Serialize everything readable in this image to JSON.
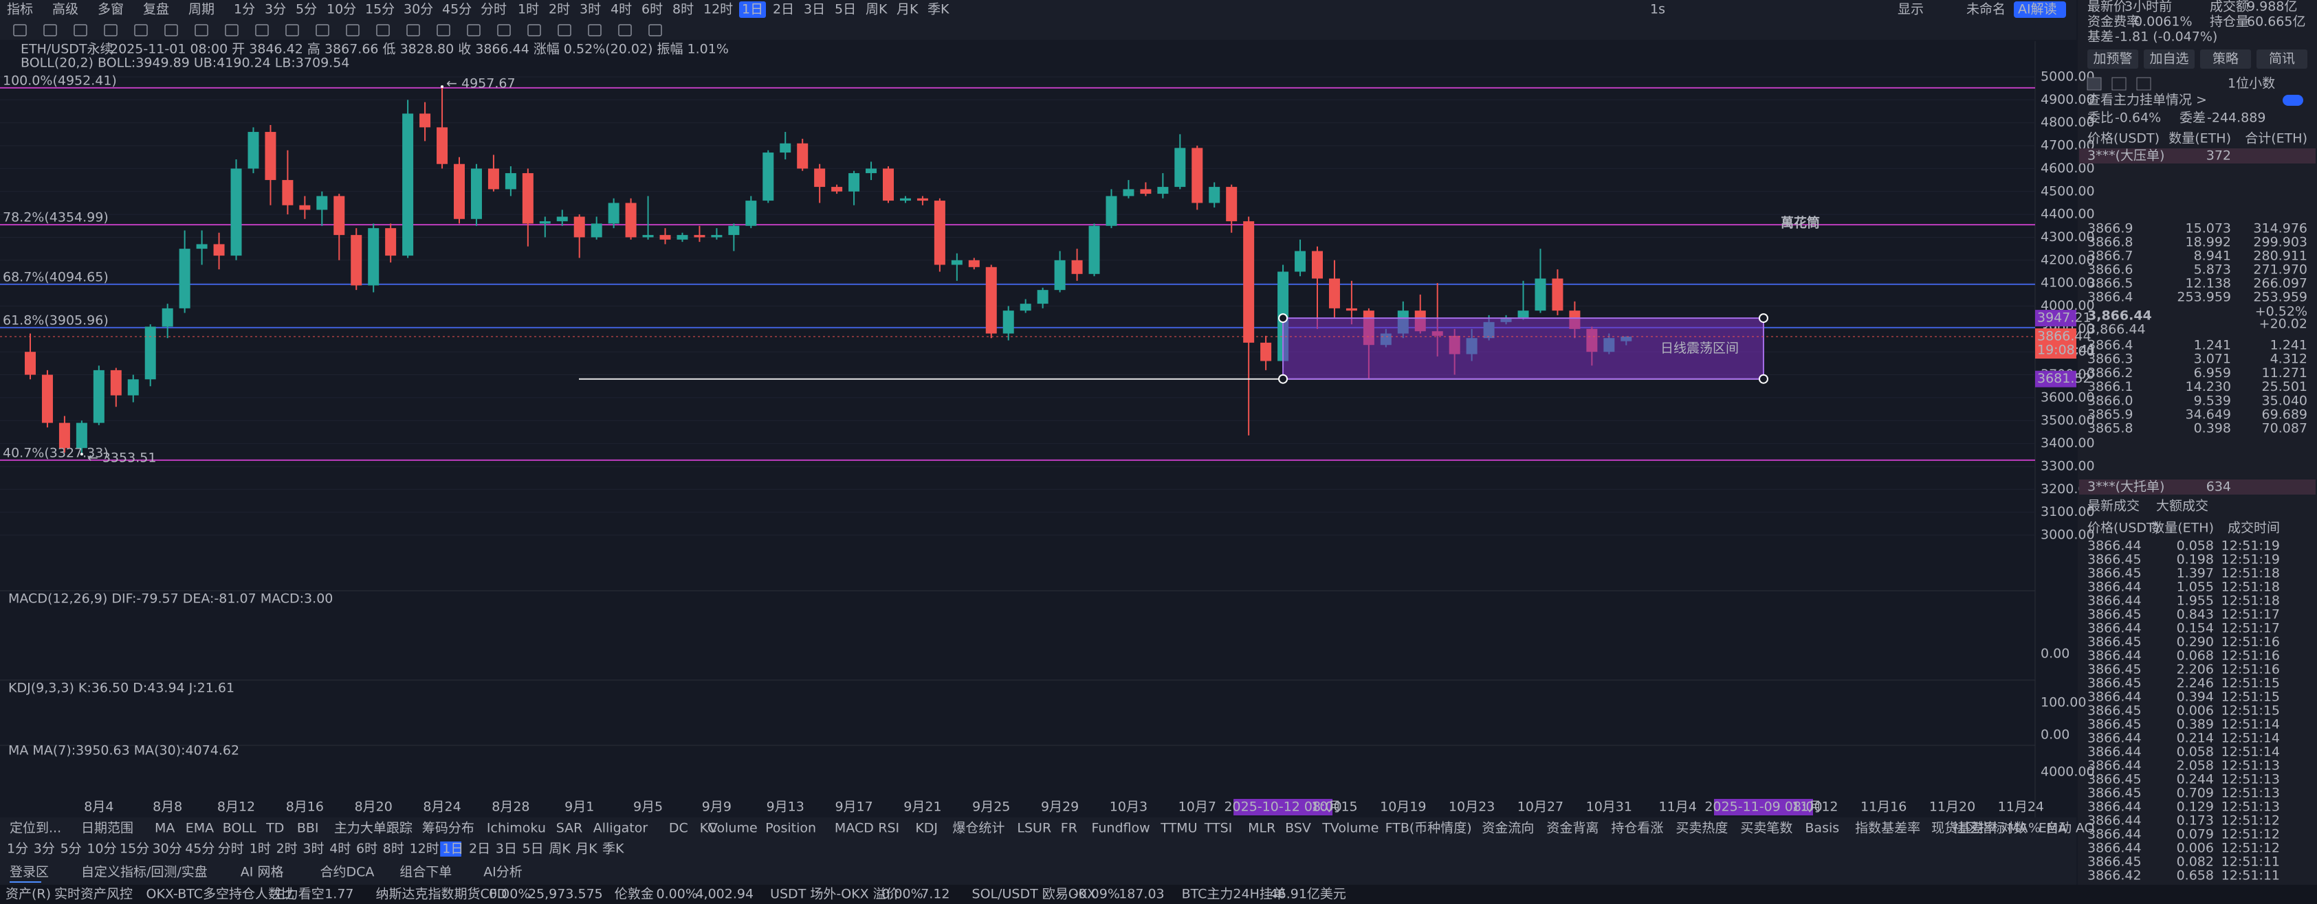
{
  "toolbar": {
    "items": [
      "指标",
      "高级",
      "多窗",
      "复盘",
      "周期",
      "1分",
      "3分",
      "5分",
      "10分",
      "15分",
      "30分",
      "45分",
      "分时",
      "1时",
      "2时",
      "3时",
      "4时",
      "6时",
      "8时",
      "12时",
      "1日",
      "2日",
      "3日",
      "5日",
      "周K",
      "月K",
      "季K"
    ],
    "selected": 20,
    "right": [
      "1s",
      "显示",
      "未命名",
      "AI解读"
    ]
  },
  "header": {
    "symbol": "ETH/USDT永续",
    "ohlc": "2025-11-01 08:00  开 3846.42  高 3867.66  低 3828.80  收 3866.44  涨幅 0.52%(20.02)  振幅 1.01%",
    "boll": "BOLL(20,2)  BOLL:3949.89  UB:4190.24  LB:3709.54"
  },
  "chart": {
    "ylim": [
      3000,
      5000
    ],
    "yticks": [
      {
        "value": 5000,
        "label": "5000.00"
      },
      {
        "value": 4900,
        "label": "4900.00"
      },
      {
        "value": 4800,
        "label": "4800.00"
      },
      {
        "value": 4700,
        "label": "4700.00"
      },
      {
        "value": 4600,
        "label": "4600.00"
      },
      {
        "value": 4500,
        "label": "4500.00"
      },
      {
        "value": 4400,
        "label": "4400.00"
      },
      {
        "value": 4300,
        "label": "4300.00"
      },
      {
        "value": 4200,
        "label": "4200.00"
      },
      {
        "value": 4100,
        "label": "4100.00"
      },
      {
        "value": 4000,
        "label": "4000.00"
      },
      {
        "value": 3900,
        "label": "3900.00"
      },
      {
        "value": 3800,
        "label": "3800.00"
      },
      {
        "value": 3700,
        "label": "3700.00"
      },
      {
        "value": 3600,
        "label": "3600.00"
      },
      {
        "value": 3500,
        "label": "3500.00"
      },
      {
        "value": 3400,
        "label": "3400.00"
      },
      {
        "value": 3300,
        "label": "3300.00"
      },
      {
        "value": 3200,
        "label": "3200.00"
      },
      {
        "value": 3100,
        "label": "3100.00"
      },
      {
        "value": 3000,
        "label": "3000.00"
      }
    ],
    "up_color": "#26a69a",
    "down_color": "#ef5350",
    "candles": [
      [
        3800,
        3880,
        3680,
        3700
      ],
      [
        3700,
        3720,
        3470,
        3490
      ],
      [
        3490,
        3520,
        3360,
        3380
      ],
      [
        3380,
        3500,
        3355,
        3490
      ],
      [
        3490,
        3740,
        3480,
        3720
      ],
      [
        3720,
        3730,
        3560,
        3610
      ],
      [
        3610,
        3700,
        3580,
        3680
      ],
      [
        3680,
        3920,
        3650,
        3910
      ],
      [
        3910,
        4010,
        3860,
        3990
      ],
      [
        3990,
        4330,
        3970,
        4250
      ],
      [
        4250,
        4330,
        4180,
        4270
      ],
      [
        4270,
        4320,
        4160,
        4220
      ],
      [
        4220,
        4640,
        4200,
        4600
      ],
      [
        4600,
        4780,
        4580,
        4760
      ],
      [
        4760,
        4790,
        4440,
        4550
      ],
      [
        4550,
        4680,
        4400,
        4440
      ],
      [
        4440,
        4480,
        4380,
        4420
      ],
      [
        4420,
        4500,
        4350,
        4480
      ],
      [
        4480,
        4490,
        4200,
        4310
      ],
      [
        4310,
        4340,
        4070,
        4090
      ],
      [
        4090,
        4360,
        4060,
        4340
      ],
      [
        4340,
        4360,
        4190,
        4220
      ],
      [
        4220,
        4900,
        4210,
        4840
      ],
      [
        4840,
        4890,
        4720,
        4780
      ],
      [
        4780,
        4957,
        4600,
        4620
      ],
      [
        4620,
        4650,
        4360,
        4380
      ],
      [
        4380,
        4620,
        4350,
        4600
      ],
      [
        4600,
        4660,
        4500,
        4510
      ],
      [
        4510,
        4610,
        4480,
        4580
      ],
      [
        4580,
        4600,
        4260,
        4360
      ],
      [
        4360,
        4390,
        4300,
        4370
      ],
      [
        4370,
        4420,
        4350,
        4390
      ],
      [
        4390,
        4400,
        4210,
        4300
      ],
      [
        4300,
        4390,
        4290,
        4360
      ],
      [
        4360,
        4470,
        4340,
        4450
      ],
      [
        4450,
        4470,
        4290,
        4300
      ],
      [
        4300,
        4480,
        4290,
        4310
      ],
      [
        4310,
        4340,
        4270,
        4290
      ],
      [
        4290,
        4320,
        4280,
        4310
      ],
      [
        4310,
        4350,
        4280,
        4300
      ],
      [
        4300,
        4340,
        4290,
        4310
      ],
      [
        4310,
        4360,
        4240,
        4350
      ],
      [
        4350,
        4480,
        4340,
        4460
      ],
      [
        4460,
        4680,
        4450,
        4670
      ],
      [
        4670,
        4760,
        4640,
        4710
      ],
      [
        4710,
        4730,
        4590,
        4600
      ],
      [
        4600,
        4620,
        4450,
        4520
      ],
      [
        4520,
        4530,
        4490,
        4500
      ],
      [
        4500,
        4590,
        4440,
        4580
      ],
      [
        4580,
        4630,
        4550,
        4600
      ],
      [
        4600,
        4610,
        4450,
        4460
      ],
      [
        4460,
        4480,
        4450,
        4470
      ],
      [
        4470,
        4480,
        4440,
        4460
      ],
      [
        4460,
        4470,
        4150,
        4180
      ],
      [
        4180,
        4230,
        4110,
        4200
      ],
      [
        4200,
        4210,
        4160,
        4170
      ],
      [
        4170,
        4180,
        3860,
        3880
      ],
      [
        3880,
        4000,
        3850,
        3980
      ],
      [
        3980,
        4030,
        3970,
        4010
      ],
      [
        4010,
        4080,
        3990,
        4070
      ],
      [
        4070,
        4240,
        4060,
        4200
      ],
      [
        4200,
        4250,
        4110,
        4140
      ],
      [
        4140,
        4360,
        4130,
        4350
      ],
      [
        4350,
        4510,
        4340,
        4480
      ],
      [
        4480,
        4550,
        4470,
        4510
      ],
      [
        4510,
        4540,
        4480,
        4490
      ],
      [
        4490,
        4580,
        4470,
        4520
      ],
      [
        4520,
        4750,
        4510,
        4690
      ],
      [
        4690,
        4700,
        4420,
        4450
      ],
      [
        4450,
        4540,
        4430,
        4520
      ],
      [
        4520,
        4530,
        4320,
        4370
      ],
      [
        4370,
        4390,
        3435,
        3840
      ],
      [
        3840,
        3870,
        3720,
        3760
      ],
      [
        3760,
        4180,
        3730,
        4150
      ],
      [
        4150,
        4290,
        4130,
        4240
      ],
      [
        4240,
        4260,
        3900,
        4120
      ],
      [
        4120,
        4200,
        3950,
        3990
      ],
      [
        3990,
        4110,
        3920,
        3980
      ],
      [
        3980,
        3990,
        3680,
        3830
      ],
      [
        3830,
        3900,
        3820,
        3880
      ],
      [
        3880,
        4020,
        3860,
        3980
      ],
      [
        3980,
        4050,
        3880,
        3890
      ],
      [
        3890,
        4100,
        3780,
        3870
      ],
      [
        3870,
        3900,
        3700,
        3790
      ],
      [
        3790,
        3900,
        3760,
        3860
      ],
      [
        3860,
        3960,
        3850,
        3930
      ],
      [
        3930,
        3960,
        3920,
        3950
      ],
      [
        3950,
        4110,
        3940,
        3980
      ],
      [
        3980,
        4250,
        3970,
        4120
      ],
      [
        4120,
        4160,
        3960,
        3980
      ],
      [
        3980,
        4020,
        3860,
        3900
      ],
      [
        3900,
        3910,
        3740,
        3800
      ],
      [
        3800,
        3880,
        3790,
        3860
      ],
      [
        3846.42,
        3867.66,
        3828.8,
        3866.44
      ]
    ],
    "fib": [
      {
        "label": "100.0%(4952.41)",
        "value": 4952.41,
        "color": "#c03dc0"
      },
      {
        "label": "78.2%(4354.99)",
        "value": 4354.99,
        "color": "#c03dc0"
      },
      {
        "label": "68.7%(4094.65)",
        "value": 4094.65,
        "color": "#3f5fd8"
      },
      {
        "label": "61.8%(3905.96)",
        "value": 3905.96,
        "color": "#3f5fd8"
      },
      {
        "label": "40.7%(3327.33)",
        "value": 3327.33,
        "color": "#c03dc0"
      }
    ],
    "high_label": "← 4957.67",
    "high": 4957.67,
    "low_label": "← 3353.51",
    "low": 3353.51,
    "watermark": "萬花筒",
    "box": {
      "label": "日线震荡区间",
      "top": 3947.21,
      "bottom": 3681.52,
      "color": "#7b2fbe"
    },
    "last": 3866.44,
    "countdown": "19:08:41",
    "x_labels": [
      "8月4",
      "8月8",
      "8月12",
      "8月16",
      "8月20",
      "8月24",
      "8月28",
      "9月1",
      "9月5",
      "9月9",
      "9月13",
      "9月17",
      "9月21",
      "9月25",
      "9月29",
      "10月3",
      "10月7",
      "2025-10-12 08:00",
      "10月15",
      "10月19",
      "10月23",
      "10月27",
      "10月31",
      "11月4",
      "2025-11-09 08:00",
      "11月12",
      "11月16",
      "11月20",
      "11月24"
    ]
  },
  "indicators": {
    "macd": "MACD(12,26,9)  DIF:-79.57  DEA:-81.07  MACD:3.00",
    "macd_axis": "0.00",
    "kdj": "KDJ(9,3,3)  K:36.50  D:43.94  J:21.61",
    "kdj_axis": [
      "100.00",
      "0.00"
    ],
    "ma": "MA  MA(7):3950.63  MA(30):4074.62",
    "ma_axis": "4000.00"
  },
  "bottom": {
    "left": [
      "定位到...",
      "日期范围"
    ],
    "main": [
      "MA",
      "EMA",
      "BOLL",
      "TD",
      "BBI",
      "主力大单跟踪",
      "筹码分布",
      "Ichimoku",
      "SAR",
      "Alligator",
      "DC",
      "KC"
    ],
    "main_selected": [
      2
    ],
    "sub": [
      "Volume",
      "Position",
      "MACD",
      "RSI",
      "KDJ",
      "爆仓统计",
      "LSUR",
      "FR",
      "Fundflow",
      "TTMU",
      "TTSI",
      "MLR",
      "BSV",
      "TVolume",
      "FTB(币种情度)",
      "资金流向",
      "资金背离",
      "持仓看涨",
      "买卖热度",
      "买卖笔数",
      "Basis",
      "指数基差率",
      "现货基差率",
      "MA",
      "EMA",
      "AO"
    ],
    "sub_selected": [
      2,
      4,
      23
    ],
    "right": [
      "社区指标",
      "对数",
      "%",
      "自动"
    ],
    "periods": [
      "1分",
      "3分",
      "5分",
      "10分",
      "15分",
      "30分",
      "45分",
      "分时",
      "1时",
      "2时",
      "3时",
      "4时",
      "6时",
      "8时",
      "12时",
      "1日",
      "2日",
      "3日",
      "5日",
      "周K",
      "月K",
      "季K"
    ],
    "period_selected": 15,
    "tabs": [
      "登录区",
      "自定义指标/回测/实盘",
      "AI 网格",
      "合约DCA",
      "组合下单",
      "AI分析"
    ],
    "status": [
      {
        "text": "资产(R)",
        "color": "#d1d4dc"
      },
      {
        "text": "实时资产风控",
        "color": "#4c8dff"
      },
      {
        "text": "OKX-BTC多空持仓人数比",
        "color": "#d1d4dc"
      },
      {
        "text": "主力看空",
        "color": "#ef5350"
      },
      {
        "text": "1.77",
        "color": "#d1d4dc"
      },
      {
        "text": "纳斯达克指数期货CFD",
        "color": "#d1d4dc"
      },
      {
        "text": "0.00%",
        "color": "#d1d4dc"
      },
      {
        "text": "25,973.575",
        "color": "#d1d4dc"
      },
      {
        "text": "伦敦金",
        "color": "#d1d4dc"
      },
      {
        "text": "0.00%",
        "color": "#d1d4dc"
      },
      {
        "text": "4,002.94",
        "color": "#d1d4dc"
      },
      {
        "text": "USDT 场外-OKX 溢价",
        "color": "#d1d4dc"
      },
      {
        "text": "0.00%",
        "color": "#d1d4dc"
      },
      {
        "text": "7.12",
        "color": "#d1d4dc"
      },
      {
        "text": "SOL/USDT 欧易OKX",
        "color": "#d1d4dc"
      },
      {
        "text": "-0.09%",
        "color": "#ef5350"
      },
      {
        "text": "187.03",
        "color": "#d1d4dc"
      },
      {
        "text": "BTC主力24H挂单",
        "color": "#d1d4dc"
      },
      {
        "text": "46.91亿美元",
        "color": "#f0c000"
      }
    ]
  },
  "panel": {
    "stats": [
      [
        "最新价",
        "3小时前"
      ],
      [
        "成交额",
        "9.988亿"
      ],
      [
        "资金费率",
        "0.0061%"
      ],
      [
        "持仓量",
        "60.665亿"
      ],
      [
        "基差",
        "-1.81 (-0.047%)"
      ]
    ],
    "buttons": [
      "加预警",
      "加自选",
      "策略",
      "简讯"
    ],
    "precision": "1位小数",
    "big_orders": "查看主力挂单情况 >",
    "ratio": [
      "委比",
      "-0.64%",
      "委差",
      "-244.889"
    ],
    "book_headers": [
      "价格(USDT)",
      "数量(ETH)",
      "合计(ETH)"
    ],
    "big_ask": [
      "3***(大压单)",
      "372"
    ],
    "asks": [
      [
        "3866.9",
        "15.073",
        "314.976"
      ],
      [
        "3866.8",
        "18.992",
        "299.903"
      ],
      [
        "3866.7",
        "8.941",
        "280.911"
      ],
      [
        "3866.6",
        "5.873",
        "271.970"
      ],
      [
        "3866.5",
        "12.138",
        "266.097"
      ],
      [
        "3866.4",
        "253.959",
        "253.959"
      ]
    ],
    "mid": [
      "3,866.44",
      "+0.52%",
      "+20.02",
      "3,866.44"
    ],
    "bids": [
      [
        "3866.4",
        "1.241",
        "1.241"
      ],
      [
        "3866.3",
        "3.071",
        "4.312"
      ],
      [
        "3866.2",
        "6.959",
        "11.271"
      ],
      [
        "3866.1",
        "14.230",
        "25.501"
      ],
      [
        "3866.0",
        "9.539",
        "35.040"
      ],
      [
        "3865.9",
        "34.649",
        "69.689"
      ],
      [
        "3865.8",
        "0.398",
        "70.087"
      ]
    ],
    "big_bid": [
      "3***(大托单)",
      "634"
    ],
    "trade_tabs": [
      "最新成交",
      "大额成交"
    ],
    "trade_headers": [
      "价格(USDT)",
      "数量(ETH)",
      "成交时间"
    ],
    "trades": [
      [
        "3866.44",
        "0.058",
        "12:51:19"
      ],
      [
        "3866.45",
        "0.198",
        "12:51:19"
      ],
      [
        "3866.45",
        "1.397",
        "12:51:18"
      ],
      [
        "3866.44",
        "1.055",
        "12:51:18"
      ],
      [
        "3866.44",
        "1.955",
        "12:51:18"
      ],
      [
        "3866.45",
        "0.843",
        "12:51:17"
      ],
      [
        "3866.44",
        "0.154",
        "12:51:17"
      ],
      [
        "3866.45",
        "0.290",
        "12:51:16"
      ],
      [
        "3866.44",
        "0.068",
        "12:51:16"
      ],
      [
        "3866.45",
        "2.206",
        "12:51:16"
      ],
      [
        "3866.45",
        "2.246",
        "12:51:15"
      ],
      [
        "3866.44",
        "0.394",
        "12:51:15"
      ],
      [
        "3866.45",
        "0.006",
        "12:51:15"
      ],
      [
        "3866.45",
        "0.389",
        "12:51:14"
      ],
      [
        "3866.44",
        "0.214",
        "12:51:14"
      ],
      [
        "3866.44",
        "0.058",
        "12:51:14"
      ],
      [
        "3866.44",
        "2.058",
        "12:51:13"
      ],
      [
        "3866.45",
        "0.244",
        "12:51:13"
      ],
      [
        "3866.45",
        "0.709",
        "12:51:13"
      ],
      [
        "3866.44",
        "0.129",
        "12:51:13"
      ],
      [
        "3866.44",
        "0.173",
        "12:51:12"
      ],
      [
        "3866.44",
        "0.079",
        "12:51:12"
      ],
      [
        "3866.44",
        "0.006",
        "12:51:12"
      ],
      [
        "3866.45",
        "0.082",
        "12:51:11"
      ],
      [
        "3866.42",
        "0.658",
        "12:51:11"
      ]
    ]
  }
}
